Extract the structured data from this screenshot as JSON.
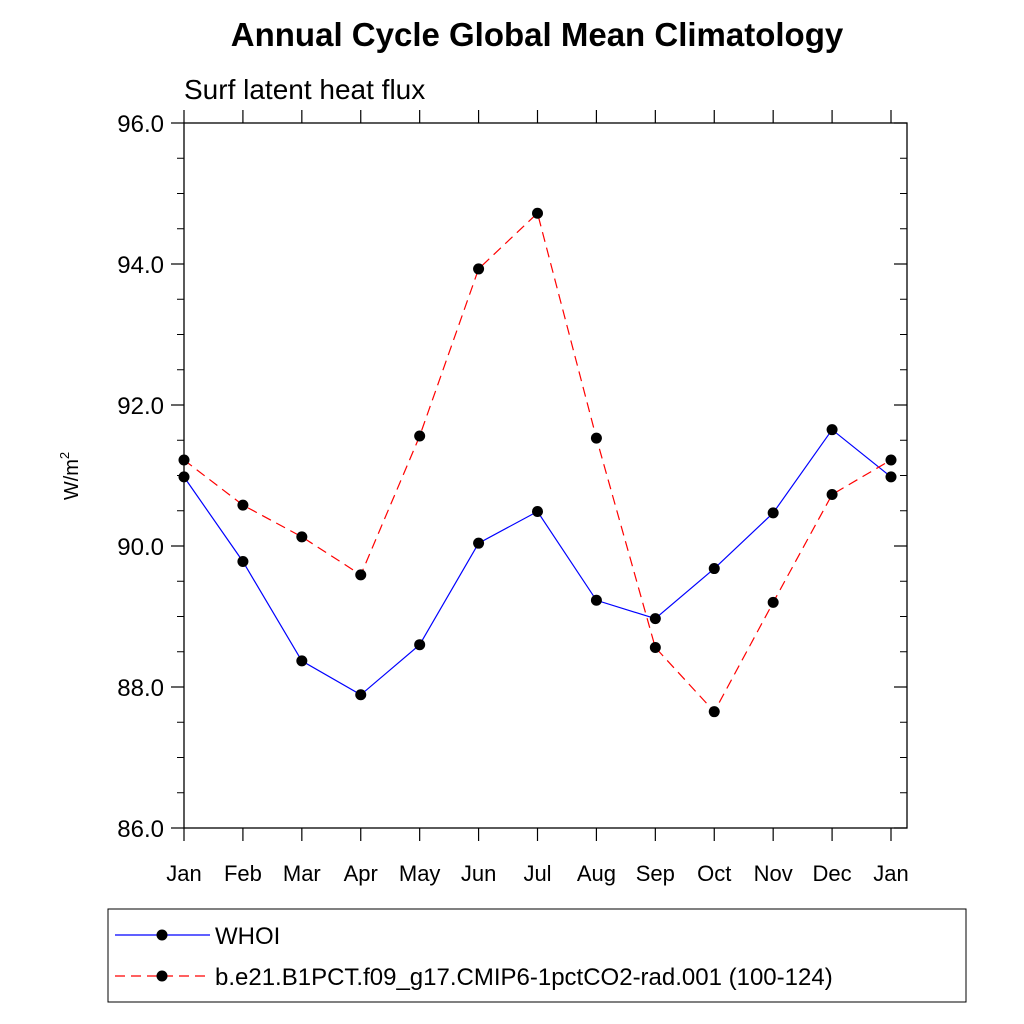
{
  "chart_data": {
    "type": "line",
    "title": "Annual Cycle Global Mean Climatology",
    "subtitle": "Surf latent heat flux",
    "xlabel": "",
    "ylabel_main": "W/m",
    "ylabel_sup": "2",
    "categories": [
      "Jan",
      "Feb",
      "Mar",
      "Apr",
      "May",
      "Jun",
      "Jul",
      "Aug",
      "Sep",
      "Oct",
      "Nov",
      "Dec",
      "Jan"
    ],
    "ylim": [
      86.0,
      96.0
    ],
    "yticks": [
      "86.0",
      "88.0",
      "90.0",
      "92.0",
      "94.0",
      "96.0"
    ],
    "grid": false,
    "legend_position": "bottom",
    "series": [
      {
        "name": "WHOI",
        "color": "#0000ff",
        "dash": "solid",
        "values": [
          90.98,
          89.78,
          88.37,
          87.89,
          88.6,
          90.04,
          90.49,
          89.23,
          88.97,
          89.68,
          90.47,
          91.65,
          90.98
        ]
      },
      {
        "name": "b.e21.B1PCT.f09_g17.CMIP6-1pctCO2-rad.001 (100-124)",
        "color": "#ff0000",
        "dash": "dashed",
        "values": [
          91.22,
          90.58,
          90.13,
          89.59,
          91.56,
          93.93,
          94.72,
          91.53,
          88.56,
          87.65,
          89.2,
          90.73,
          91.22
        ]
      }
    ]
  }
}
